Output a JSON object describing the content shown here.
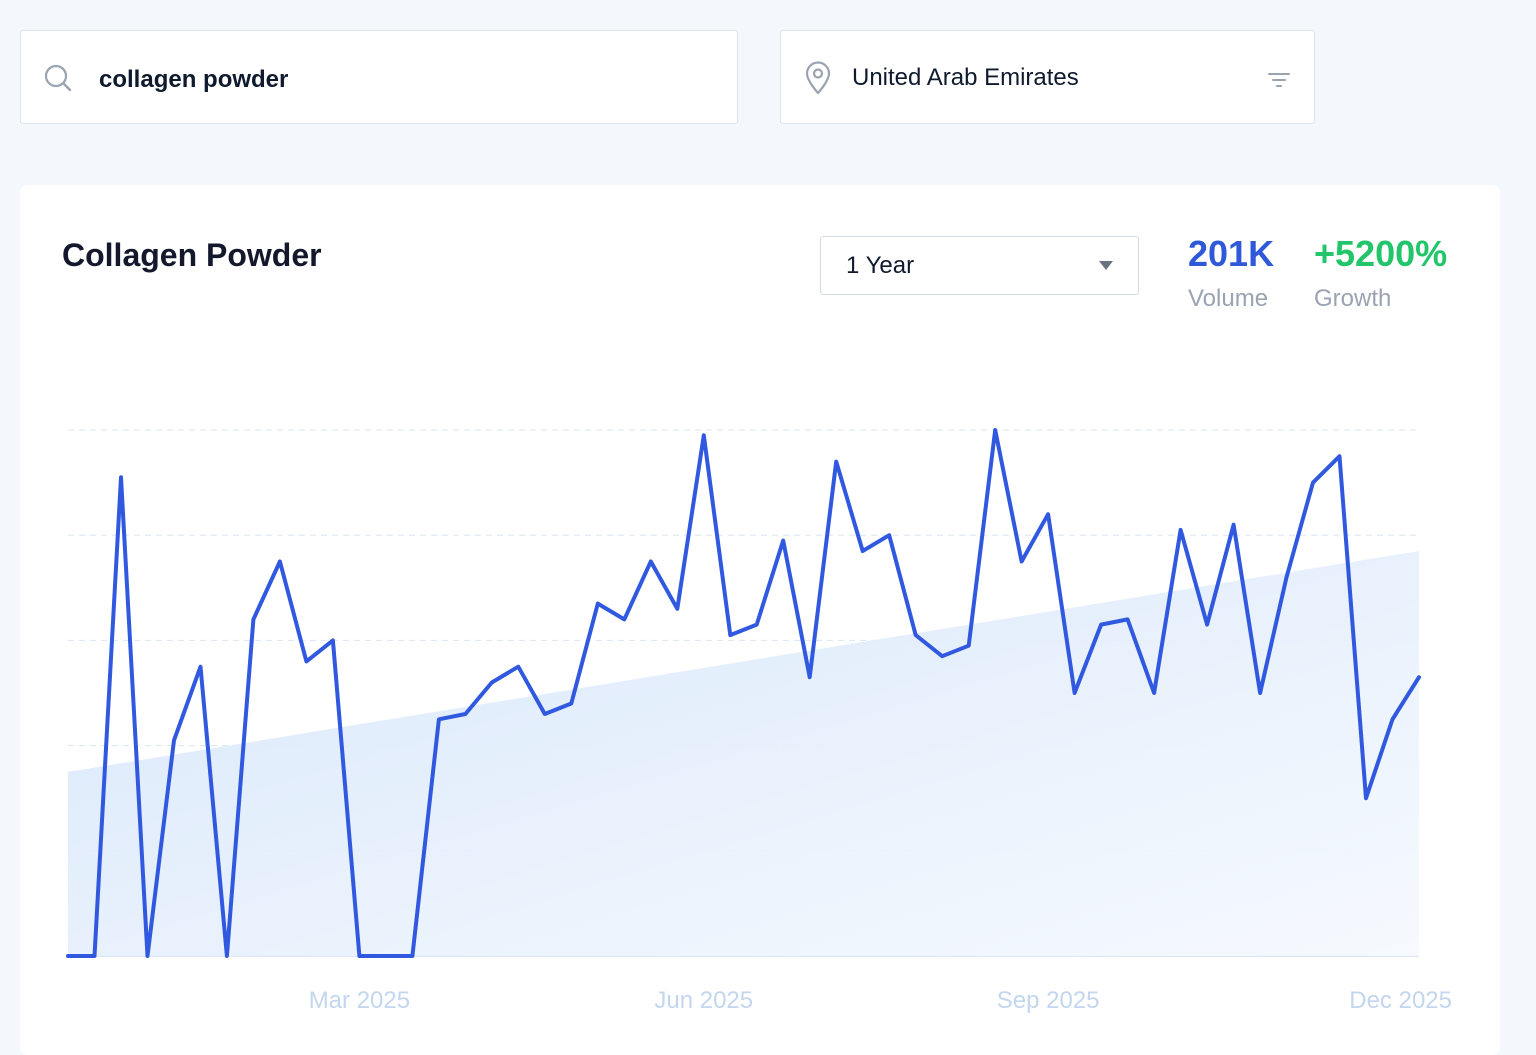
{
  "search": {
    "value": "collagen powder"
  },
  "location": {
    "value": "United Arab Emirates"
  },
  "card": {
    "title": "Collagen Powder",
    "period": "1 Year",
    "volume_value": "201K",
    "volume_label": "Volume",
    "growth_value": "+5200%",
    "growth_label": "Growth"
  },
  "colors": {
    "line": "#3159e0",
    "volume": "#2f59d9",
    "growth": "#22c56a",
    "trend_fill": "#dce9fa",
    "grid": "#dbe5f3",
    "tick": "#c3d6ef"
  },
  "chart_data": {
    "type": "line",
    "grid": true,
    "ylim": [
      0,
      100
    ],
    "x_ticks": [
      "Mar 2025",
      "Jun 2025",
      "Sep 2025",
      "Dec 2025"
    ],
    "x_tick_index": [
      11,
      24,
      37,
      50
    ],
    "series": [
      {
        "values": [
          0,
          0,
          91,
          0,
          41,
          55,
          0,
          64,
          75,
          56,
          60,
          0,
          0,
          0,
          45,
          46,
          52,
          55,
          46,
          48,
          67,
          64,
          75,
          66,
          99,
          61,
          63,
          79,
          53,
          94,
          77,
          80,
          61,
          57,
          59,
          100,
          75,
          84,
          50,
          63,
          64,
          50,
          81,
          63,
          82,
          50,
          72,
          90,
          95,
          30,
          45,
          53
        ]
      }
    ],
    "trend": [
      35,
      77
    ]
  }
}
